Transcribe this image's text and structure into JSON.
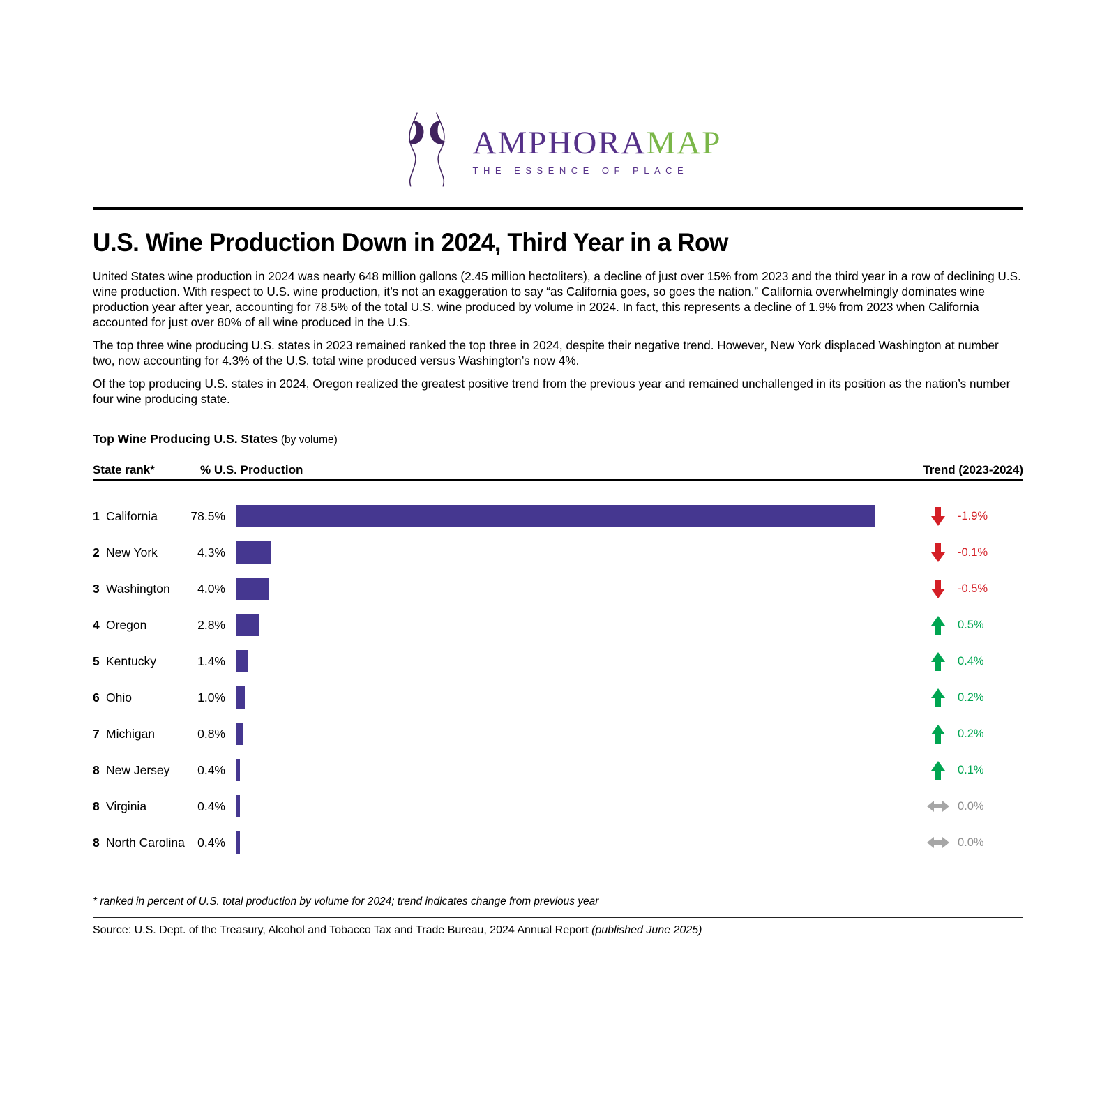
{
  "logo": {
    "brand_primary": "AMPHORA",
    "brand_secondary": "MAP",
    "tagline": "THE ESSENCE OF PLACE",
    "colors": {
      "purple": "#563189",
      "green": "#7ab648",
      "icon_purple": "#41235f"
    }
  },
  "article": {
    "title": "U.S. Wine Production Down in 2024, Third Year in a Row",
    "paragraphs": [
      "United States wine production in 2024 was nearly 648 million gallons (2.45 million hectoliters), a decline of just over 15% from 2023 and the third year in a row of declining U.S. wine production. With respect to U.S. wine production, it’s not an exaggeration to say “as California goes, so goes the nation.” California overwhelmingly dominates wine production year after year, accounting for 78.5% of the total U.S. wine produced by volume in 2024. In fact, this represents a decline of 1.9% from 2023 when California accounted for just over 80% of all wine produced in the U.S.",
      "The top three wine producing U.S. states in 2023 remained ranked the top three in 2024, despite their negative trend. However, New York displaced Washington at number two, now accounting for 4.3% of the U.S. total wine produced versus Washington’s now 4%.",
      "Of the top producing U.S. states in 2024, Oregon realized the greatest positive trend from the previous year and remained unchallenged in its position as the nation’s number four wine producing state."
    ]
  },
  "chart_data": {
    "type": "bar",
    "title": "Top Wine Producing U.S. States",
    "subtitle": "(by volume)",
    "orientation": "horizontal",
    "xlim": [
      0,
      80
    ],
    "bar_color": "#453790",
    "trend_colors": {
      "down": "#d41f26",
      "up": "#00a551",
      "flat": "#a6a6a6"
    },
    "columns": {
      "rank": "State rank*",
      "production": "% U.S. Production",
      "trend": "Trend (2023-2024)"
    },
    "rows": [
      {
        "rank": "1",
        "state": "California",
        "value": 78.5,
        "value_label": "78.5%",
        "trend": -1.9,
        "trend_label": "-1.9%",
        "trend_direction": "down"
      },
      {
        "rank": "2",
        "state": "New York",
        "value": 4.3,
        "value_label": "4.3%",
        "trend": -0.1,
        "trend_label": "-0.1%",
        "trend_direction": "down"
      },
      {
        "rank": "3",
        "state": "Washington",
        "value": 4.0,
        "value_label": "4.0%",
        "trend": -0.5,
        "trend_label": "-0.5%",
        "trend_direction": "down"
      },
      {
        "rank": "4",
        "state": "Oregon",
        "value": 2.8,
        "value_label": "2.8%",
        "trend": 0.5,
        "trend_label": "0.5%",
        "trend_direction": "up"
      },
      {
        "rank": "5",
        "state": "Kentucky",
        "value": 1.4,
        "value_label": "1.4%",
        "trend": 0.4,
        "trend_label": "0.4%",
        "trend_direction": "up"
      },
      {
        "rank": "6",
        "state": "Ohio",
        "value": 1.0,
        "value_label": "1.0%",
        "trend": 0.2,
        "trend_label": "0.2%",
        "trend_direction": "up"
      },
      {
        "rank": "7",
        "state": "Michigan",
        "value": 0.8,
        "value_label": "0.8%",
        "trend": 0.2,
        "trend_label": "0.2%",
        "trend_direction": "up"
      },
      {
        "rank": "8",
        "state": "New Jersey",
        "value": 0.4,
        "value_label": "0.4%",
        "trend": 0.1,
        "trend_label": "0.1%",
        "trend_direction": "up"
      },
      {
        "rank": "8",
        "state": "Virginia",
        "value": 0.4,
        "value_label": "0.4%",
        "trend": 0.0,
        "trend_label": "0.0%",
        "trend_direction": "flat"
      },
      {
        "rank": "8",
        "state": "North Carolina",
        "value": 0.4,
        "value_label": "0.4%",
        "trend": 0.0,
        "trend_label": "0.0%",
        "trend_direction": "flat"
      }
    ]
  },
  "footnote": "* ranked in percent of U.S. total production by volume for 2024; trend indicates change from previous year",
  "source": {
    "text": "Source: U.S. Dept. of the Treasury, Alcohol and Tobacco Tax and Trade Bureau, 2024 Annual Report ",
    "published": "(published June 2025)"
  }
}
